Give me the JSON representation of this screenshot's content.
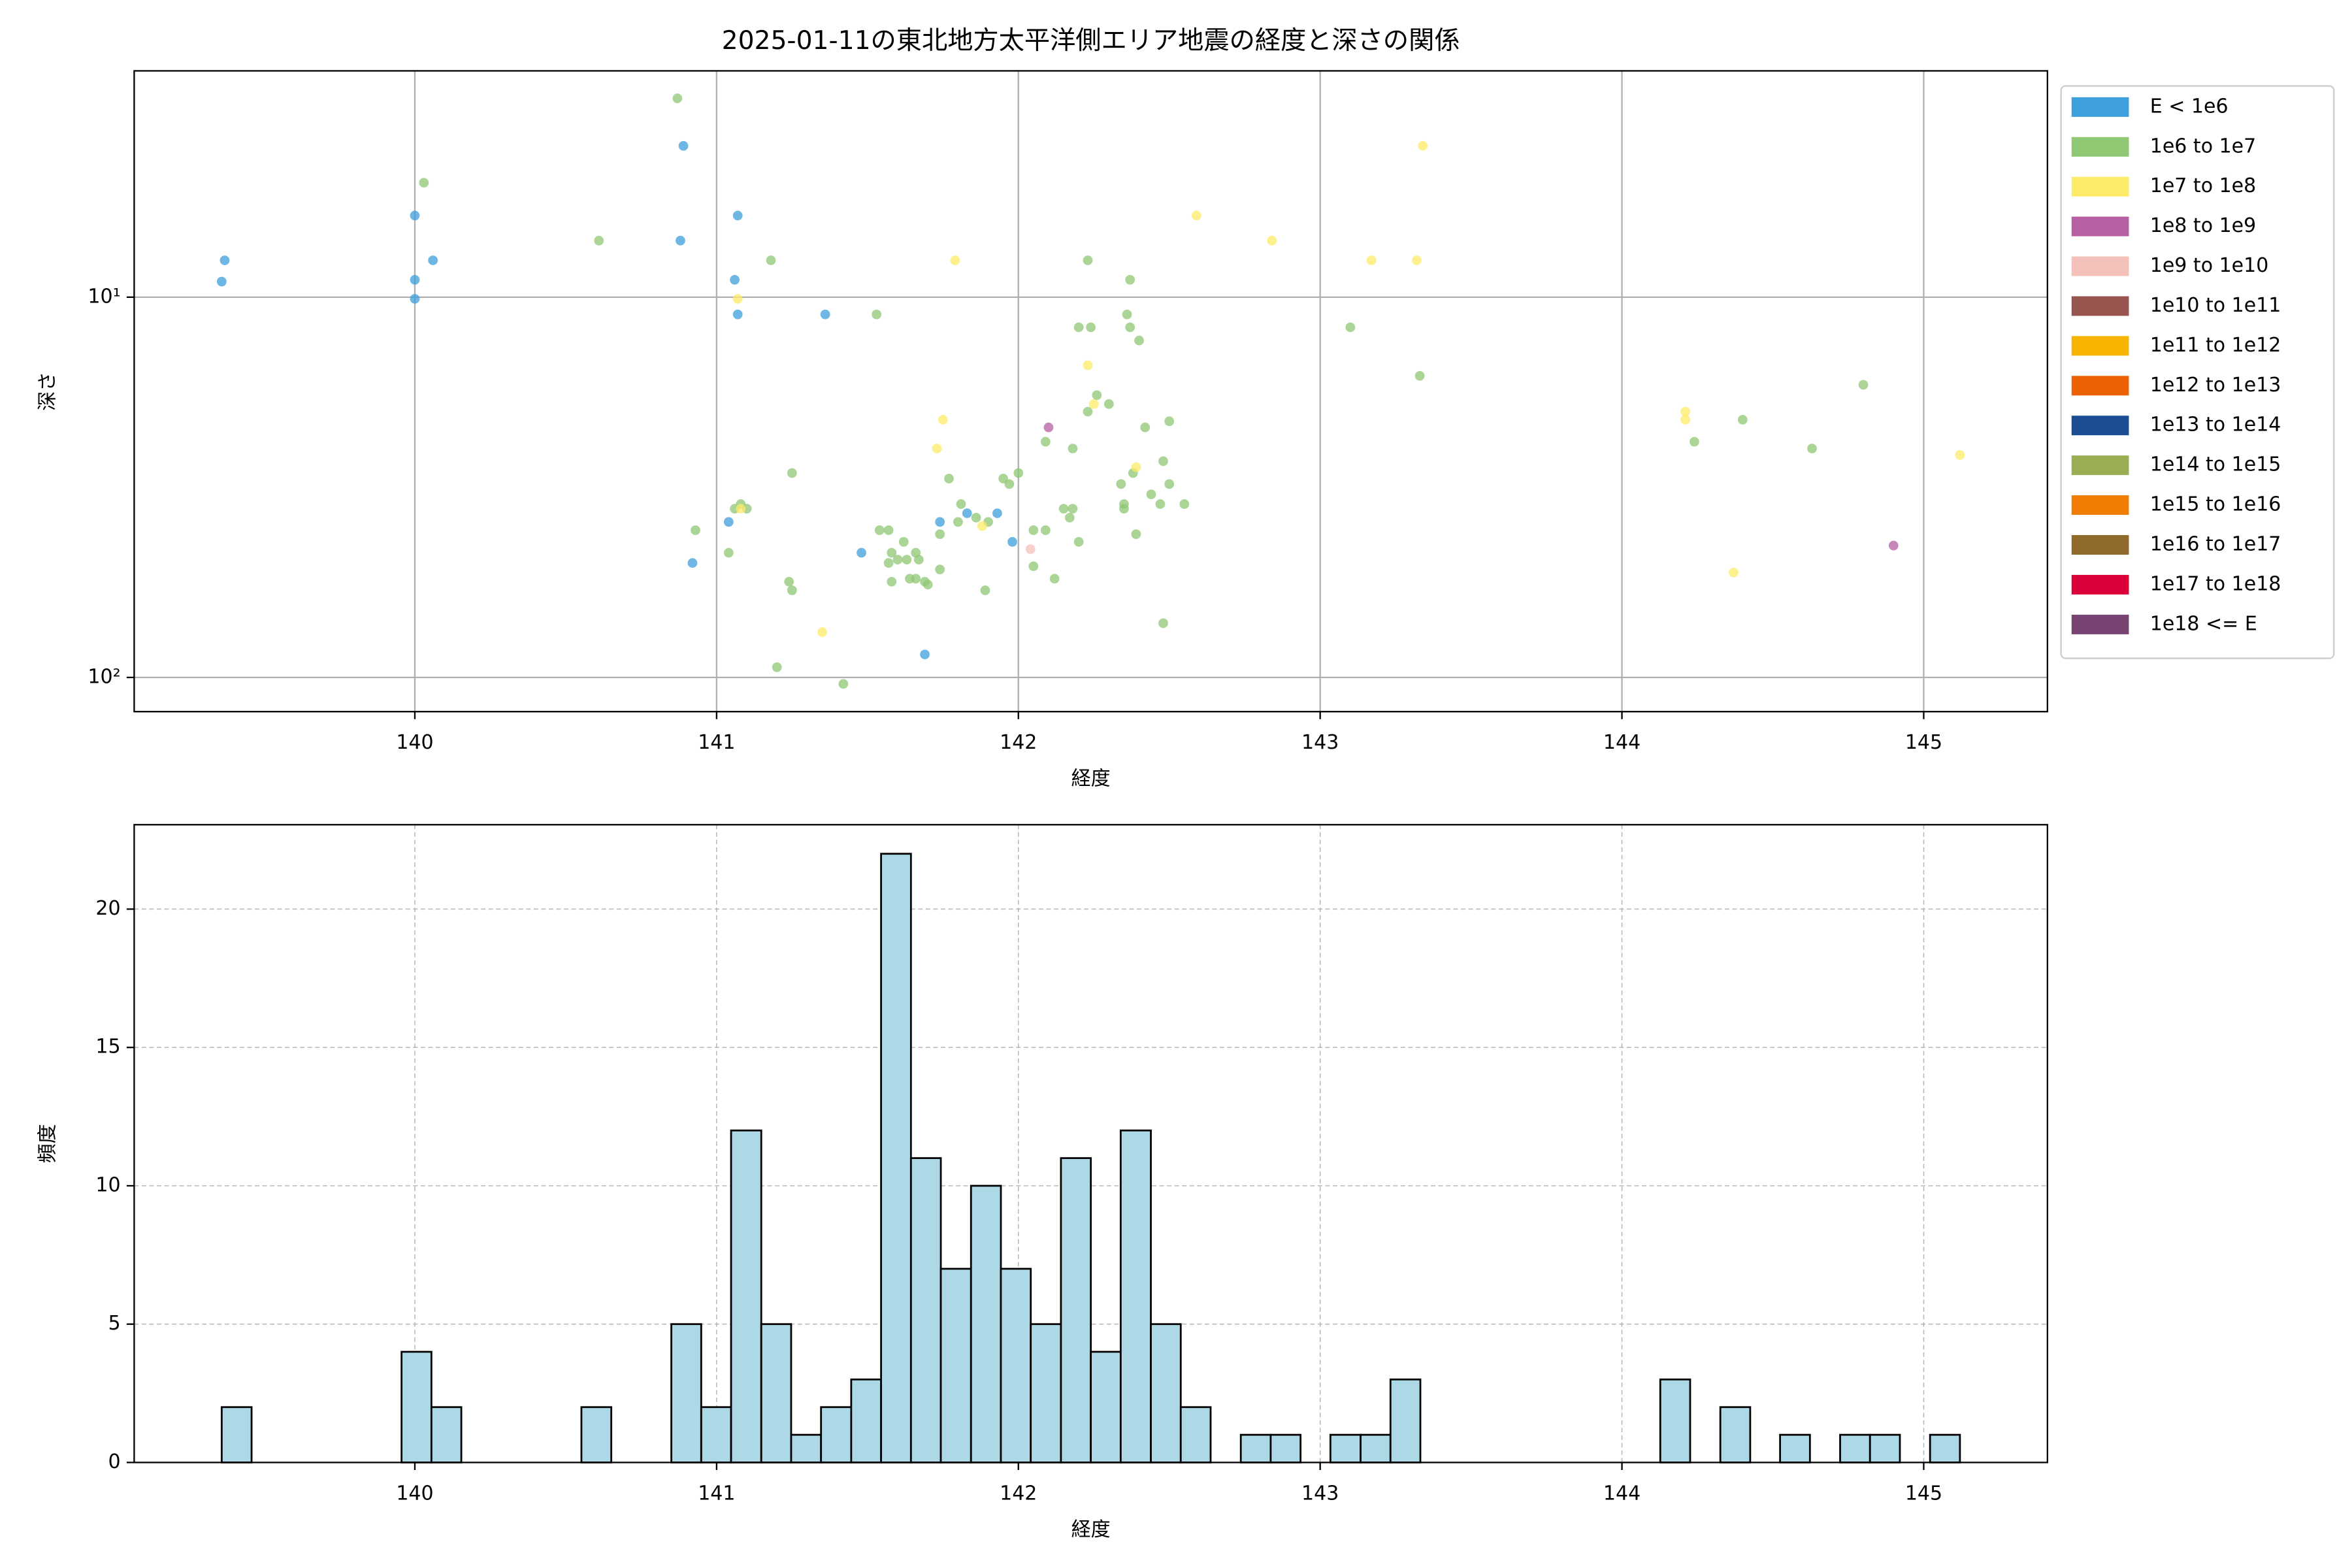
{
  "chart_data": [
    {
      "type": "scatter",
      "title": "2025-01-11の東北地方太平洋側エリア地震の経度と深さの関係",
      "xlabel": "経度",
      "ylabel": "深さ",
      "xlim": [
        139.07,
        145.41
      ],
      "xticks": [
        140,
        141,
        142,
        143,
        144,
        145
      ],
      "ylim": [
        2.54,
        123
      ],
      "y_log": true,
      "y_inverted": true,
      "yticks": [
        {
          "value": 10,
          "label": "10¹"
        },
        {
          "value": 100,
          "label": "10²"
        }
      ],
      "grid": true,
      "legend": "outside-upper-right",
      "series": [
        {
          "name": "E < 1e6",
          "color": "#3d9fdb",
          "x": [
            139.36,
            139.37,
            140.0,
            140.0,
            140.0,
            140.06,
            140.89,
            140.88,
            141.07,
            141.06,
            141.07,
            141.36,
            141.04,
            140.92,
            141.48,
            141.74,
            141.83,
            141.93,
            141.98,
            141.69
          ],
          "values": [
            9.1,
            8.0,
            6.1,
            9.0,
            10.1,
            8.0,
            4.0,
            7.1,
            6.1,
            9.0,
            11.1,
            11.1,
            39,
            50,
            47,
            39,
            37,
            37,
            44,
            87
          ]
        },
        {
          "name": "1e6 to 1e7",
          "color": "#8fc773",
          "x": [
            140.87,
            140.03,
            140.61,
            141.18,
            141.53,
            142.23,
            142.37,
            142.36,
            142.37,
            142.2,
            142.24,
            142.4,
            143.1,
            143.33,
            142.26,
            142.3,
            142.23,
            142.09,
            142.18,
            142.42,
            142.5,
            142.48,
            142.5,
            142.38,
            142.34,
            142.44,
            142.55,
            142.35,
            142.47,
            142.35,
            142.18,
            142.15,
            142.17,
            142.2,
            142.39,
            142.0,
            141.95,
            141.97,
            141.81,
            141.77,
            141.86,
            141.8,
            141.74,
            141.9,
            142.05,
            142.09,
            141.54,
            141.57,
            141.62,
            141.58,
            141.6,
            141.63,
            141.66,
            141.67,
            141.57,
            141.58,
            141.64,
            141.69,
            141.7,
            141.74,
            142.05,
            142.12,
            141.89,
            141.66,
            141.24,
            141.25,
            140.93,
            141.04,
            141.06,
            141.08,
            141.1,
            141.25,
            141.2,
            141.42,
            142.48,
            144.24,
            144.4,
            144.63,
            144.8
          ],
          "values": [
            3.0,
            5.0,
            7.1,
            8.0,
            11.1,
            8.0,
            9.0,
            11.1,
            12.0,
            12.0,
            12.0,
            13.0,
            12.0,
            16.1,
            18.1,
            19.1,
            20.0,
            24,
            25,
            22,
            21.2,
            27,
            31,
            29,
            31,
            33,
            35,
            35,
            35,
            36,
            36,
            36,
            38,
            44,
            42,
            29,
            30,
            31,
            35,
            30,
            38,
            39,
            42,
            39,
            41,
            41,
            41,
            41,
            44,
            47,
            49,
            49,
            47,
            49,
            50,
            56,
            55,
            56,
            57,
            52,
            51,
            55,
            59,
            55,
            56,
            59,
            41,
            47,
            36,
            35,
            36,
            29,
            94,
            104,
            72,
            24,
            21,
            25,
            17
          ]
        },
        {
          "name": "1e7 to 1e8",
          "color": "#fdeb67",
          "x": [
            143.34,
            142.59,
            142.84,
            143.17,
            143.32,
            141.79,
            141.07,
            142.23,
            142.25,
            141.75,
            141.73,
            142.39,
            144.21,
            144.21,
            145.12,
            141.88,
            141.08,
            141.35,
            144.37
          ],
          "values": [
            4.0,
            6.1,
            7.1,
            8.0,
            8.0,
            8.0,
            10.1,
            15.1,
            19.1,
            21,
            25,
            28,
            20,
            21,
            26,
            40,
            36,
            76,
            53
          ]
        },
        {
          "name": "1e8 to 1e9",
          "color": "#b65fa2",
          "x": [
            142.1,
            144.9
          ],
          "values": [
            22,
            45
          ]
        },
        {
          "name": "1e9 to 1e10",
          "color": "#f4c0ba",
          "x": [
            142.04
          ],
          "values": [
            46
          ]
        },
        {
          "name": "1e10 to 1e11",
          "color": "#98544f",
          "x": [],
          "values": []
        },
        {
          "name": "1e11 to 1e12",
          "color": "#f7b502",
          "x": [],
          "values": []
        },
        {
          "name": "1e12 to 1e13",
          "color": "#ed6105",
          "x": [],
          "values": []
        },
        {
          "name": "1e13 to 1e14",
          "color": "#1c4c92",
          "x": [],
          "values": []
        },
        {
          "name": "1e14 to 1e15",
          "color": "#9bad53",
          "x": [],
          "values": []
        },
        {
          "name": "1e15 to 1e16",
          "color": "#ef7c03",
          "x": [],
          "values": []
        },
        {
          "name": "1e16 to 1e17",
          "color": "#8f6a2b",
          "x": [],
          "values": []
        },
        {
          "name": "1e17 to 1e18",
          "color": "#dc003a",
          "x": [],
          "values": []
        },
        {
          "name": "1e18 <= E",
          "color": "#784371",
          "x": [],
          "values": []
        }
      ]
    },
    {
      "type": "histogram",
      "xlabel": "経度",
      "ylabel": "頻度",
      "color": "#add8e6",
      "xlim": [
        139.07,
        145.41
      ],
      "xticks": [
        140,
        141,
        142,
        143,
        144,
        145
      ],
      "ylim": [
        0,
        23.05
      ],
      "yticks": [
        0,
        5,
        10,
        15,
        20
      ],
      "grid": true,
      "grid_style": "dashed",
      "bins": [
        139.36,
        139.459,
        139.559,
        139.658,
        139.757,
        139.857,
        139.956,
        140.055,
        140.154,
        140.254,
        140.353,
        140.452,
        140.552,
        140.651,
        140.75,
        140.85,
        140.949,
        141.048,
        141.148,
        141.247,
        141.346,
        141.446,
        141.545,
        141.644,
        141.743,
        141.843,
        141.942,
        142.041,
        142.141,
        142.24,
        142.339,
        142.439,
        142.538,
        142.637,
        142.737,
        142.836,
        142.935,
        143.034,
        143.134,
        143.233,
        143.332,
        143.432,
        143.531,
        143.63,
        143.73,
        143.829,
        143.928,
        144.028,
        144.127,
        144.226,
        144.326,
        144.425,
        144.524,
        144.623,
        144.723,
        144.822,
        144.921,
        145.021,
        145.12
      ],
      "counts": [
        2,
        0,
        0,
        0,
        0,
        0,
        4,
        2,
        0,
        0,
        0,
        0,
        2,
        0,
        0,
        5,
        2,
        12,
        5,
        1,
        2,
        3,
        22,
        11,
        7,
        10,
        7,
        5,
        11,
        4,
        12,
        5,
        2,
        0,
        1,
        1,
        0,
        1,
        1,
        3,
        0,
        0,
        0,
        0,
        0,
        0,
        0,
        0,
        3,
        0,
        2,
        0,
        1,
        0,
        1,
        1,
        0,
        1
      ]
    }
  ]
}
